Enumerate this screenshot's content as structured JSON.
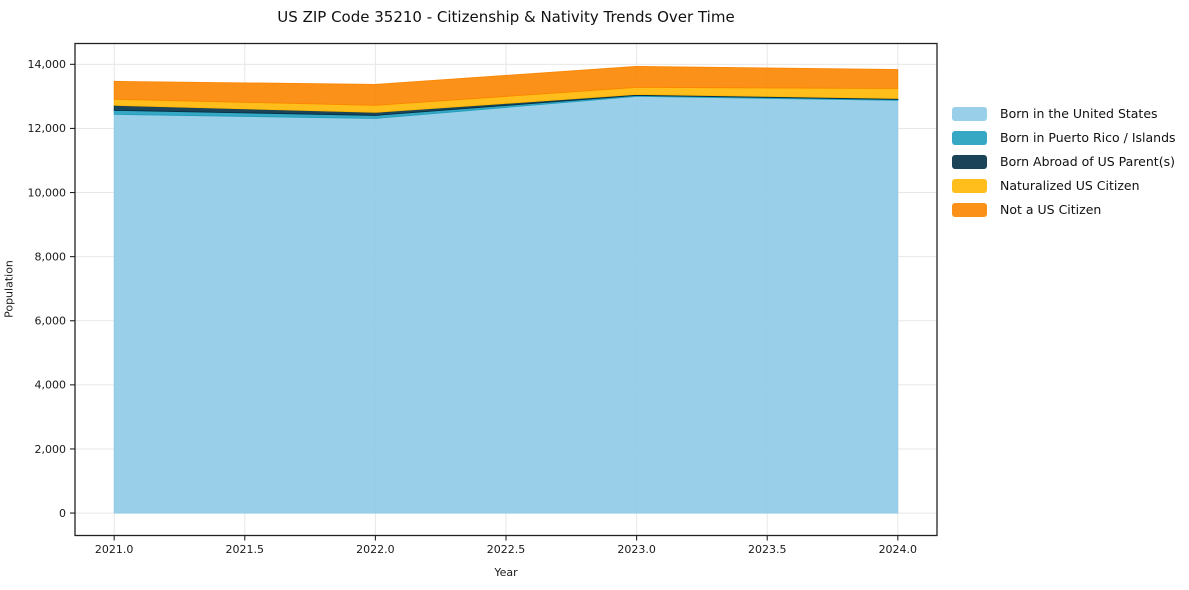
{
  "title": "US ZIP Code 35210 - Citizenship & Nativity Trends Over Time",
  "chart_data": {
    "type": "area",
    "stacked": true,
    "title": "US ZIP Code 35210 - Citizenship & Nativity Trends Over Time",
    "xlabel": "Year",
    "ylabel": "Population",
    "x": [
      2021,
      2022,
      2023,
      2024
    ],
    "series": [
      {
        "name": "Born in the United States",
        "color": "#8ECAE6",
        "values": [
          12440,
          12310,
          13000,
          12875
        ]
      },
      {
        "name": "Born in Puerto Rico / Islands",
        "color": "#219EBC",
        "values": [
          125,
          95,
          30,
          30
        ]
      },
      {
        "name": "Born Abroad of US Parent(s)",
        "color": "#023047",
        "values": [
          155,
          95,
          30,
          30
        ]
      },
      {
        "name": "Naturalized US Citizen",
        "color": "#FFB703",
        "values": [
          190,
          220,
          220,
          310
        ]
      },
      {
        "name": "Not a US Citizen",
        "color": "#FB8500",
        "values": [
          560,
          655,
          655,
          595
        ]
      }
    ],
    "totals": [
      13470,
      13375,
      13935,
      13840
    ],
    "x_ticks": [
      {
        "value": 2021.0,
        "label": "2021.0"
      },
      {
        "value": 2021.5,
        "label": "2021.5"
      },
      {
        "value": 2022.0,
        "label": "2022.0"
      },
      {
        "value": 2022.5,
        "label": "2022.5"
      },
      {
        "value": 2023.0,
        "label": "2023.0"
      },
      {
        "value": 2023.5,
        "label": "2023.5"
      },
      {
        "value": 2024.0,
        "label": "2024.0"
      }
    ],
    "y_ticks": [
      {
        "value": 0,
        "label": "0"
      },
      {
        "value": 2000,
        "label": "2,000"
      },
      {
        "value": 4000,
        "label": "4,000"
      },
      {
        "value": 6000,
        "label": "6,000"
      },
      {
        "value": 8000,
        "label": "8,000"
      },
      {
        "value": 10000,
        "label": "10,000"
      },
      {
        "value": 12000,
        "label": "12,000"
      },
      {
        "value": 14000,
        "label": "14,000"
      }
    ],
    "xlim": [
      2020.85,
      2024.15
    ],
    "ylim": [
      -700,
      14650
    ],
    "grid": true,
    "grid_color": "#e7e7e7",
    "border_color": "#222222",
    "fill_opacity": 0.9,
    "legend_position": "right-outside"
  }
}
